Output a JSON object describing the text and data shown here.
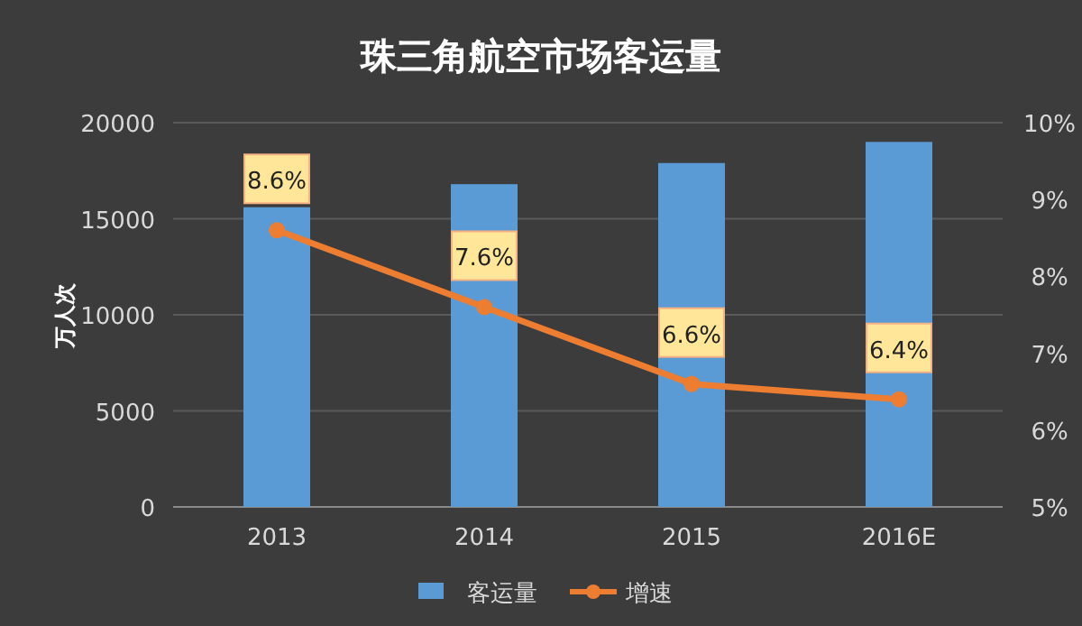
{
  "chart_data": {
    "type": "bar",
    "title": "珠三角航空市场客运量",
    "ylabel": "万人次",
    "categories": [
      "2013",
      "2014",
      "2015",
      "2016E"
    ],
    "series": [
      {
        "name": "客运量",
        "color": "#5b9bd5",
        "values": [
          15600,
          16800,
          17900,
          19000
        ]
      },
      {
        "name": "增速",
        "type": "line",
        "axis": "y2",
        "color": "#ed7d31",
        "marker": "circle",
        "values": [
          8.6,
          7.6,
          6.6,
          6.4
        ],
        "value_labels": [
          "8.6%",
          "7.6%",
          "6.6%",
          "6.4%"
        ]
      }
    ],
    "ylim": [
      0,
      20000
    ],
    "yticks": [
      0,
      5000,
      10000,
      15000,
      20000
    ],
    "y2lim": [
      5,
      10
    ],
    "y2ticks": [
      {
        "value": 5,
        "label": "5%"
      },
      {
        "value": 6,
        "label": "6%"
      },
      {
        "value": 7,
        "label": "7%"
      },
      {
        "value": 8,
        "label": "8%"
      },
      {
        "value": 9,
        "label": "9%"
      },
      {
        "value": 10,
        "label": "10%"
      }
    ],
    "grid": "y",
    "legend": "bottom"
  }
}
